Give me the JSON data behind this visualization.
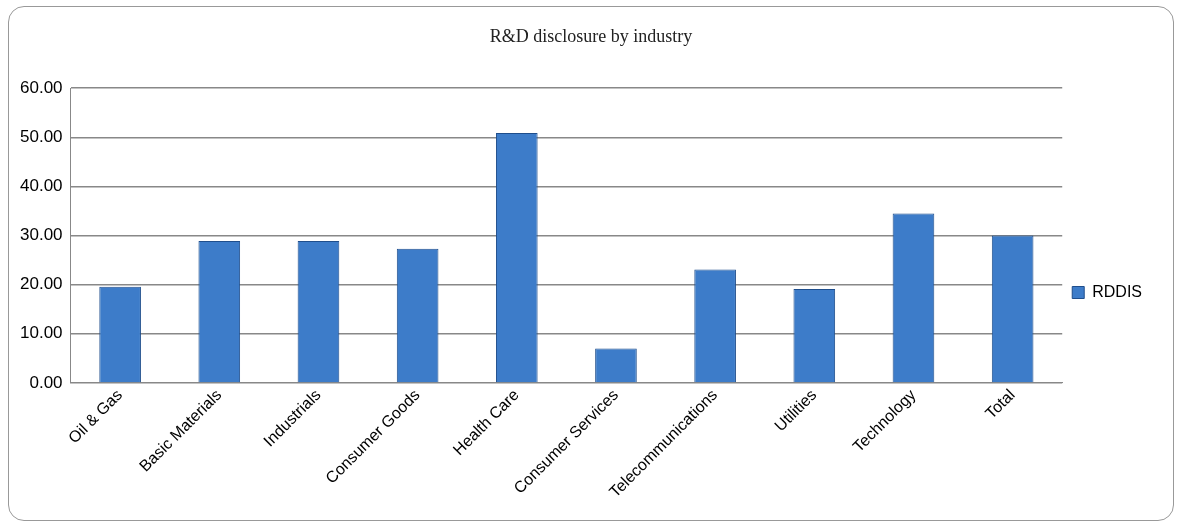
{
  "chart_data": {
    "type": "bar",
    "title": "R&D disclosure by industry",
    "categories": [
      "Oil & Gas",
      "Basic Materials",
      "Industrials",
      "Consumer Goods",
      "Health Care",
      "Consumer Services",
      "Telecommunications",
      "Utilities",
      "Technology",
      "Total"
    ],
    "series": [
      {
        "name": "RDDIS",
        "color": "#3d7cc9",
        "values": [
          19.6,
          28.9,
          28.9,
          27.3,
          50.9,
          7.0,
          23.1,
          19.1,
          34.5,
          30.0
        ]
      }
    ],
    "ylim": [
      0,
      60
    ],
    "yticks": [
      {
        "value": 0,
        "label": "0.00"
      },
      {
        "value": 10,
        "label": "10.00"
      },
      {
        "value": 20,
        "label": "20.00"
      },
      {
        "value": 30,
        "label": "30.00"
      },
      {
        "value": 40,
        "label": "40.00"
      },
      {
        "value": 50,
        "label": "50.00"
      },
      {
        "value": 60,
        "label": "60.00"
      }
    ],
    "grid": "y",
    "legend": "right"
  }
}
